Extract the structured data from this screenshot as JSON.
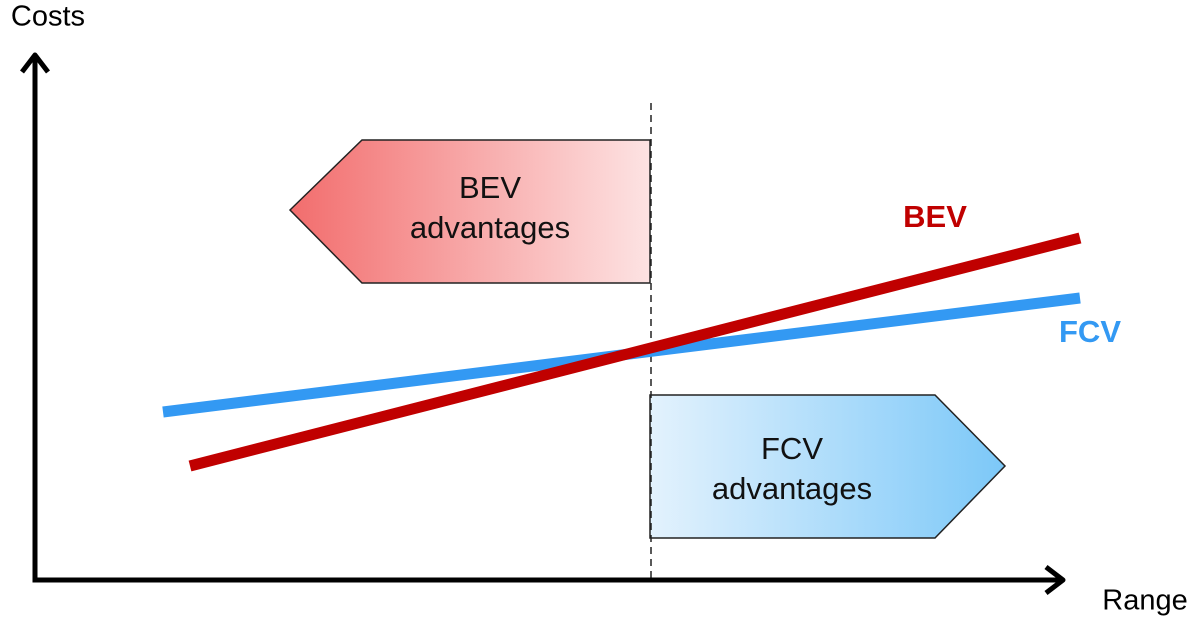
{
  "axes": {
    "y_label": "Costs",
    "x_label": "Range"
  },
  "lines": [
    {
      "label": "BEV"
    },
    {
      "label": "FCV"
    }
  ],
  "regions": [
    {
      "label_lines": [
        "BEV",
        "advantages"
      ]
    },
    {
      "label_lines": [
        "FCV",
        "advantages"
      ]
    }
  ]
}
